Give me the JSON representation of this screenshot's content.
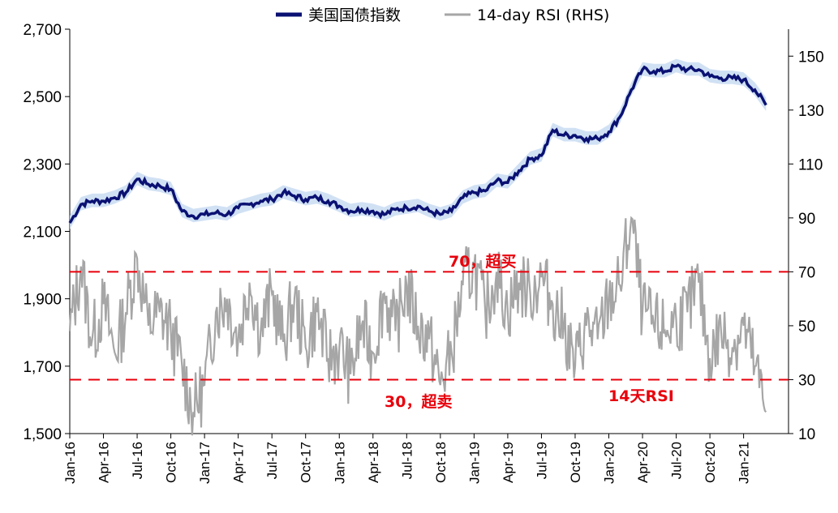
{
  "chart_data": {
    "type": "line",
    "title": "",
    "legend": {
      "placement": "top-center",
      "items": [
        {
          "name": "美国国债指数",
          "color": "#0a1172",
          "stroke": "thick"
        },
        {
          "name": "14-day RSI (RHS)",
          "color": "#a6a6a6",
          "stroke": "thin"
        }
      ]
    },
    "x_ticks": [
      "Jan-16",
      "Apr-16",
      "Jul-16",
      "Oct-16",
      "Jan-17",
      "Apr-17",
      "Jul-17",
      "Oct-17",
      "Jan-18",
      "Apr-18",
      "Jul-18",
      "Oct-18",
      "Jan-19",
      "Apr-19",
      "Jul-19",
      "Oct-19",
      "Jan-20",
      "Apr-20",
      "Jul-20",
      "Oct-20",
      "Jan-21"
    ],
    "y_left": {
      "range": [
        1500,
        2700
      ],
      "ticks": [
        "1,500",
        "1,700",
        "1,900",
        "2,100",
        "2,300",
        "2,500",
        "2,700"
      ]
    },
    "y_right": {
      "range": [
        10,
        160
      ],
      "ticks": [
        "10",
        "30",
        "50",
        "70",
        "90",
        "110",
        "130",
        "150"
      ]
    },
    "series": [
      {
        "name": "美国国债指数",
        "axis": "left",
        "color": "#0a1172",
        "points": [
          [
            "Jan-16",
            2125
          ],
          [
            "Feb-16",
            2180
          ],
          [
            "Mar-16",
            2190
          ],
          [
            "Apr-16",
            2190
          ],
          [
            "May-16",
            2200
          ],
          [
            "Jun-16",
            2215
          ],
          [
            "Jul-16",
            2255
          ],
          [
            "Aug-16",
            2240
          ],
          [
            "Sep-16",
            2235
          ],
          [
            "Oct-16",
            2225
          ],
          [
            "Nov-16",
            2160
          ],
          [
            "Dec-16",
            2145
          ],
          [
            "Jan-17",
            2150
          ],
          [
            "Feb-17",
            2155
          ],
          [
            "Mar-17",
            2150
          ],
          [
            "Apr-17",
            2170
          ],
          [
            "May-17",
            2180
          ],
          [
            "Jun-17",
            2190
          ],
          [
            "Jul-17",
            2195
          ],
          [
            "Aug-17",
            2215
          ],
          [
            "Sep-17",
            2205
          ],
          [
            "Oct-17",
            2195
          ],
          [
            "Nov-17",
            2200
          ],
          [
            "Dec-17",
            2190
          ],
          [
            "Jan-18",
            2175
          ],
          [
            "Feb-18",
            2160
          ],
          [
            "Mar-18",
            2165
          ],
          [
            "Apr-18",
            2160
          ],
          [
            "May-18",
            2150
          ],
          [
            "Jun-18",
            2165
          ],
          [
            "Jul-18",
            2170
          ],
          [
            "Aug-18",
            2175
          ],
          [
            "Sep-18",
            2160
          ],
          [
            "Oct-18",
            2150
          ],
          [
            "Nov-18",
            2160
          ],
          [
            "Dec-18",
            2200
          ],
          [
            "Jan-19",
            2215
          ],
          [
            "Feb-19",
            2220
          ],
          [
            "Mar-19",
            2250
          ],
          [
            "Apr-19",
            2245
          ],
          [
            "May-19",
            2280
          ],
          [
            "Jun-19",
            2315
          ],
          [
            "Jul-19",
            2325
          ],
          [
            "Aug-19",
            2400
          ],
          [
            "Sep-19",
            2385
          ],
          [
            "Oct-19",
            2385
          ],
          [
            "Nov-19",
            2375
          ],
          [
            "Dec-19",
            2375
          ],
          [
            "Jan-20",
            2395
          ],
          [
            "Feb-20",
            2440
          ],
          [
            "Mar-20",
            2520
          ],
          [
            "Apr-20",
            2580
          ],
          [
            "May-20",
            2575
          ],
          [
            "Jun-20",
            2575
          ],
          [
            "Jul-20",
            2590
          ],
          [
            "Aug-20",
            2580
          ],
          [
            "Sep-20",
            2580
          ],
          [
            "Oct-20",
            2560
          ],
          [
            "Nov-20",
            2555
          ],
          [
            "Dec-20",
            2555
          ],
          [
            "Jan-21",
            2550
          ],
          [
            "Feb-21",
            2520
          ],
          [
            "Mar-21",
            2475
          ]
        ]
      },
      {
        "name": "14-day RSI (RHS)",
        "axis": "right",
        "color": "#a6a6a6",
        "points": [
          [
            "Jan-16",
            48
          ],
          [
            "Feb-16",
            72
          ],
          [
            "Mar-16",
            45
          ],
          [
            "Apr-16",
            58
          ],
          [
            "May-16",
            40
          ],
          [
            "Jun-16",
            55
          ],
          [
            "Jul-16",
            75
          ],
          [
            "Aug-16",
            50
          ],
          [
            "Sep-16",
            55
          ],
          [
            "Oct-16",
            48
          ],
          [
            "Nov-16",
            35
          ],
          [
            "Dec-16",
            18
          ],
          [
            "Jan-17",
            28
          ],
          [
            "Feb-17",
            55
          ],
          [
            "Mar-17",
            60
          ],
          [
            "Apr-17",
            45
          ],
          [
            "May-17",
            66
          ],
          [
            "Jun-17",
            48
          ],
          [
            "Jul-17",
            62
          ],
          [
            "Aug-17",
            44
          ],
          [
            "Sep-17",
            60
          ],
          [
            "Oct-17",
            42
          ],
          [
            "Nov-17",
            55
          ],
          [
            "Dec-17",
            38
          ],
          [
            "Jan-18",
            42
          ],
          [
            "Feb-18",
            32
          ],
          [
            "Mar-18",
            50
          ],
          [
            "Apr-18",
            40
          ],
          [
            "May-18",
            62
          ],
          [
            "Jun-18",
            48
          ],
          [
            "Jul-18",
            65
          ],
          [
            "Aug-18",
            50
          ],
          [
            "Sep-18",
            45
          ],
          [
            "Oct-18",
            28
          ],
          [
            "Nov-18",
            40
          ],
          [
            "Dec-18",
            65
          ],
          [
            "Jan-19",
            72
          ],
          [
            "Feb-19",
            55
          ],
          [
            "Mar-19",
            70
          ],
          [
            "Apr-19",
            55
          ],
          [
            "May-19",
            66
          ],
          [
            "Jun-19",
            62
          ],
          [
            "Jul-19",
            68
          ],
          [
            "Aug-19",
            58
          ],
          [
            "Sep-19",
            50
          ],
          [
            "Oct-19",
            35
          ],
          [
            "Nov-19",
            50
          ],
          [
            "Dec-19",
            45
          ],
          [
            "Jan-20",
            60
          ],
          [
            "Feb-20",
            65
          ],
          [
            "Mar-20",
            90
          ],
          [
            "Apr-20",
            55
          ],
          [
            "May-20",
            50
          ],
          [
            "Jun-20",
            48
          ],
          [
            "Jul-20",
            52
          ],
          [
            "Aug-20",
            55
          ],
          [
            "Sep-20",
            66
          ],
          [
            "Oct-20",
            38
          ],
          [
            "Nov-20",
            48
          ],
          [
            "Dec-20",
            42
          ],
          [
            "Jan-21",
            50
          ],
          [
            "Feb-21",
            35
          ],
          [
            "Mar-21",
            18
          ]
        ]
      }
    ],
    "reference_lines": [
      {
        "value": 70,
        "axis": "right",
        "label": "70，超买",
        "color": "#e8000b",
        "style": "dashed"
      },
      {
        "value": 30,
        "axis": "right",
        "label": "30，超卖",
        "color": "#e8000b",
        "style": "dashed"
      }
    ],
    "annotations": [
      {
        "text": "14天RSI",
        "color": "#e8000b"
      }
    ],
    "grid": false
  }
}
